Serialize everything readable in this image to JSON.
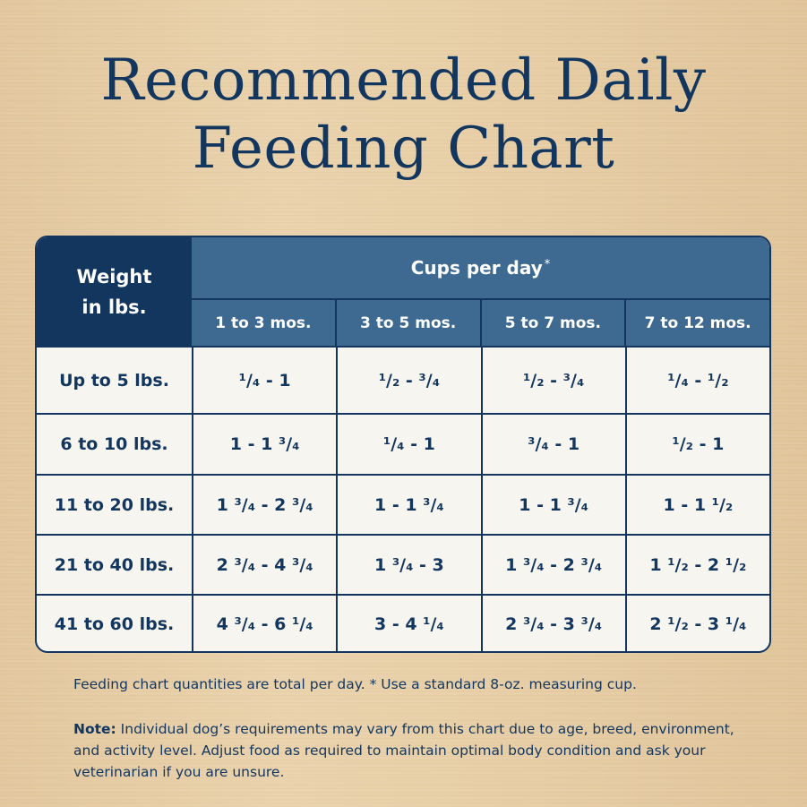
{
  "title": {
    "line1": "Recommended Daily",
    "line2": "Feeding Chart"
  },
  "table": {
    "weight_header_line1": "Weight",
    "weight_header_line2": "in lbs.",
    "cups_header": "Cups per day",
    "cups_header_mark": "*",
    "age_columns": [
      "1 to 3 mos.",
      "3 to 5 mos.",
      "5 to 7 mos.",
      "7 to 12 mos."
    ],
    "rows": [
      {
        "weight": "Up to 5 lbs.",
        "values": [
          "¹/₄ - 1",
          "¹/₂ - ³/₄",
          "¹/₂ - ³/₄",
          "¹/₄ - ¹/₂"
        ]
      },
      {
        "weight": "6 to 10 lbs.",
        "values": [
          "1 - 1 ³/₄",
          "¹/₄ - 1",
          "³/₄ - 1",
          "¹/₂ - 1"
        ]
      },
      {
        "weight": "11 to 20 lbs.",
        "values": [
          "1 ³/₄ - 2 ³/₄",
          "1 - 1 ³/₄",
          "1 - 1 ³/₄",
          "1 - 1 ¹/₂"
        ]
      },
      {
        "weight": "21 to 40 lbs.",
        "values": [
          "2 ³/₄ - 4 ³/₄",
          "1 ³/₄ - 3",
          "1 ³/₄ - 2 ³/₄",
          "1 ¹/₂ - 2 ¹/₂"
        ]
      },
      {
        "weight": "41 to 60 lbs.",
        "values": [
          "4 ³/₄ - 6 ¹/₄",
          "3 - 4 ¹/₄",
          "2 ³/₄ - 3 ³/₄",
          "2 ¹/₂ - 3 ¹/₄"
        ]
      }
    ]
  },
  "footnote": "Feeding chart quantities are total per day. * Use a standard 8-oz. measuring cup.",
  "note": {
    "label": "Note:",
    "text": " Individual dog’s requirements may vary from this chart due to age, breed, environment, and activity level. Adjust food as required to maintain optimal body condition and ask your veterinarian if you are unsure."
  },
  "colors": {
    "navy": "#13365f",
    "header_blue": "#3e6a91",
    "cell_bg": "#f7f5ef"
  }
}
